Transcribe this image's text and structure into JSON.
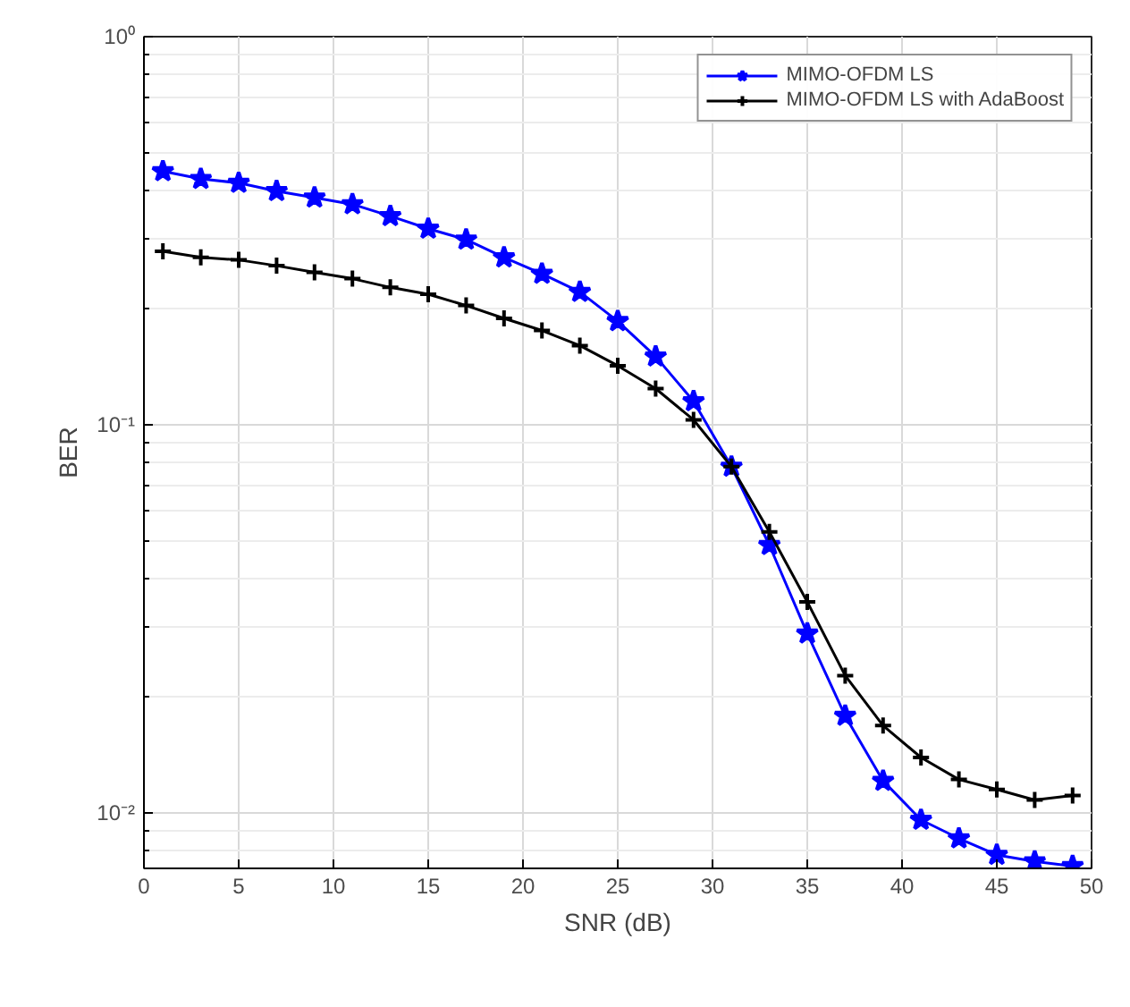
{
  "chart_data": {
    "type": "line",
    "xlabel": "SNR (dB)",
    "ylabel": "BER",
    "log": "y",
    "grid": true,
    "legend": "top right",
    "x": [
      1,
      3,
      5,
      7,
      9,
      11,
      13,
      15,
      17,
      19,
      21,
      23,
      25,
      27,
      29,
      31,
      33,
      35,
      37,
      39,
      41,
      43,
      45,
      47,
      49
    ],
    "xlim": [
      0,
      50
    ],
    "xticks": [
      0,
      5,
      10,
      15,
      20,
      25,
      30,
      35,
      40,
      45,
      50
    ],
    "ylim": [
      0.0072,
      1
    ],
    "yticks": [
      {
        "value": 0.01,
        "label": "10⁻²"
      },
      {
        "value": 0.1,
        "label": "10⁻¹"
      },
      {
        "value": 1,
        "label": "10⁰"
      }
    ],
    "series": [
      {
        "name": "MIMO-OFDM LS",
        "color": "#0000ff",
        "marker": "star",
        "values": [
          0.45,
          0.43,
          0.42,
          0.4,
          0.385,
          0.37,
          0.345,
          0.32,
          0.3,
          0.27,
          0.245,
          0.22,
          0.185,
          0.15,
          0.115,
          0.078,
          0.049,
          0.029,
          0.0178,
          0.0121,
          0.0096,
          0.0086,
          0.0078,
          0.0075,
          0.0073
        ]
      },
      {
        "name": "MIMO-OFDM LS with AdaBoost",
        "color": "#000000",
        "marker": "cross",
        "values": [
          0.28,
          0.27,
          0.266,
          0.257,
          0.247,
          0.238,
          0.226,
          0.217,
          0.203,
          0.188,
          0.175,
          0.16,
          0.142,
          0.124,
          0.103,
          0.078,
          0.053,
          0.035,
          0.0226,
          0.0168,
          0.0139,
          0.0122,
          0.0115,
          0.0108,
          0.0111
        ]
      }
    ]
  }
}
